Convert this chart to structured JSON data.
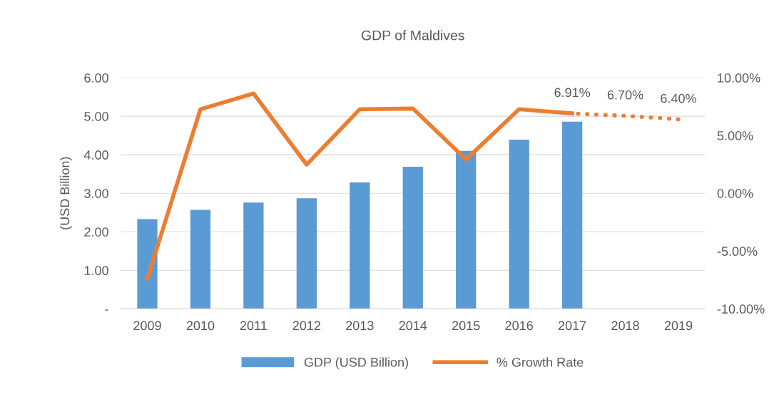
{
  "chart_data": {
    "type": "bar",
    "title": "GDP of Maldives",
    "ylabel": "(USD Billion)",
    "categories": [
      "2009",
      "2010",
      "2011",
      "2012",
      "2013",
      "2014",
      "2015",
      "2016",
      "2017",
      "2018",
      "2019"
    ],
    "series": [
      {
        "name": "GDP (USD Billion)",
        "color": "#5b9bd5",
        "values": [
          2.33,
          2.57,
          2.76,
          2.87,
          3.28,
          3.69,
          4.1,
          4.39,
          4.86,
          null,
          null
        ]
      },
      {
        "name": "% Growth Rate",
        "type": "line",
        "axis": "y2",
        "color": "#ed7d31",
        "line_style": "solid",
        "values": [
          -7.4,
          7.27,
          8.63,
          2.48,
          7.27,
          7.33,
          2.92,
          7.27,
          6.91,
          null,
          null
        ]
      },
      {
        "type": "line",
        "axis": "y2",
        "color": "#ed7d31",
        "line_style": "dotted",
        "values": [
          null,
          null,
          null,
          null,
          null,
          null,
          null,
          null,
          6.91,
          6.7,
          6.4
        ],
        "value_labels": [
          null,
          null,
          null,
          null,
          null,
          null,
          null,
          null,
          "6.91%",
          "6.70%",
          "6.40%"
        ]
      }
    ],
    "ylim": [
      0,
      6
    ],
    "yticks": [
      {
        "value": 0,
        "label": "-"
      },
      {
        "value": 1,
        "label": "1.00"
      },
      {
        "value": 2,
        "label": "2.00"
      },
      {
        "value": 3,
        "label": "3.00"
      },
      {
        "value": 4,
        "label": "4.00"
      },
      {
        "value": 5,
        "label": "5.00"
      },
      {
        "value": 6,
        "label": "6.00"
      }
    ],
    "y2lim": [
      -10,
      10
    ],
    "y2ticks": [
      {
        "value": -10,
        "label": "-10.00%"
      },
      {
        "value": -5,
        "label": "-5.00%"
      },
      {
        "value": 0,
        "label": "0.00%"
      },
      {
        "value": 5,
        "label": "5.00%"
      },
      {
        "value": 10,
        "label": "10.00%"
      }
    ],
    "grid": "y",
    "legend": "bottom"
  }
}
